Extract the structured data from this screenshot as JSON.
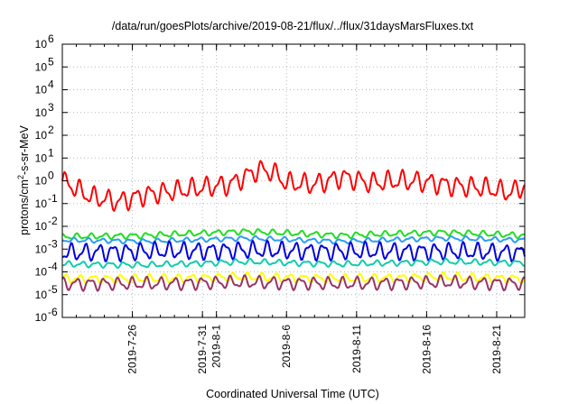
{
  "chart_data": {
    "type": "line",
    "title": "/data/run/goesPlots/archive/2019-08-21/flux/../flux/31daysMarsFluxes.txt",
    "xlabel": "Coordinated Universal Time (UTC)",
    "ylabel": {
      "pre": "protons/cm",
      "sup": "2",
      "post": "-s-sr-MeV"
    },
    "y_scale": "log",
    "ylim": [
      1e-06,
      1000000.0
    ],
    "y_ticks": [
      {
        "value": 1e-06,
        "base": "10",
        "exp": "-6"
      },
      {
        "value": 1e-05,
        "base": "10",
        "exp": "-5"
      },
      {
        "value": 0.0001,
        "base": "10",
        "exp": "-4"
      },
      {
        "value": 0.001,
        "base": "10",
        "exp": "-3"
      },
      {
        "value": 0.01,
        "base": "10",
        "exp": "-2"
      },
      {
        "value": 0.1,
        "base": "10",
        "exp": "-1"
      },
      {
        "value": 1.0,
        "base": "10",
        "exp": "0"
      },
      {
        "value": 10.0,
        "base": "10",
        "exp": "1"
      },
      {
        "value": 100.0,
        "base": "10",
        "exp": "2"
      },
      {
        "value": 1000.0,
        "base": "10",
        "exp": "3"
      },
      {
        "value": 10000.0,
        "base": "10",
        "exp": "4"
      },
      {
        "value": 100000.0,
        "base": "10",
        "exp": "5"
      },
      {
        "value": 1000000.0,
        "base": "10",
        "exp": "6"
      }
    ],
    "xlim": [
      "2019-07-21",
      "2019-08-23"
    ],
    "x_ticks": [
      "2019-7-26",
      "2019-7-31",
      "2019-8-1",
      "2019-8-6",
      "2019-8-11",
      "2019-8-16",
      "2019-8-21"
    ],
    "x_tick_dates": [
      "2019-07-26",
      "2019-07-31",
      "2019-08-01",
      "2019-08-06",
      "2019-08-11",
      "2019-08-16",
      "2019-08-21"
    ],
    "grid": true,
    "legend": "none",
    "series": [
      {
        "color": "#ff0000",
        "dates": [
          "2019-07-21",
          "2019-07-23",
          "2019-07-25",
          "2019-07-27",
          "2019-07-29",
          "2019-07-31",
          "2019-08-02",
          "2019-08-03",
          "2019-08-04",
          "2019-08-05",
          "2019-08-06",
          "2019-08-08",
          "2019-08-10",
          "2019-08-12",
          "2019-08-14",
          "2019-08-16",
          "2019-08-18",
          "2019-08-20",
          "2019-08-22",
          "2019-08-23"
        ],
        "values": [
          1.0,
          0.2,
          0.12,
          0.25,
          0.35,
          0.5,
          0.7,
          1.5,
          3.0,
          2.5,
          0.8,
          0.7,
          1.5,
          0.8,
          1.0,
          0.9,
          0.6,
          0.5,
          0.3,
          0.6
        ],
        "amp": 0.35
      },
      {
        "color": "#22dd22",
        "dates": [
          "2019-07-21",
          "2019-07-27",
          "2019-08-03",
          "2019-08-10",
          "2019-08-17",
          "2019-08-23"
        ],
        "values": [
          0.0035,
          0.004,
          0.006,
          0.004,
          0.0055,
          0.004
        ],
        "amp": 0.1
      },
      {
        "color": "#2a9df4",
        "dates": [
          "2019-07-21",
          "2019-07-27",
          "2019-08-03",
          "2019-08-10",
          "2019-08-17",
          "2019-08-23"
        ],
        "values": [
          0.0025,
          0.0022,
          0.003,
          0.0022,
          0.003,
          0.0025
        ],
        "amp": 0.08
      },
      {
        "color": "#0000dd",
        "dates": [
          "2019-07-21",
          "2019-07-27",
          "2019-08-03",
          "2019-08-10",
          "2019-08-17",
          "2019-08-23"
        ],
        "values": [
          0.0007,
          0.0008,
          0.0009,
          0.0008,
          0.0008,
          0.0007
        ],
        "amp": 0.3
      },
      {
        "color": "#11ccaa",
        "dates": [
          "2019-07-21",
          "2019-07-27",
          "2019-08-03",
          "2019-08-10",
          "2019-08-17",
          "2019-08-23"
        ],
        "values": [
          0.00022,
          0.0002,
          0.00028,
          0.00022,
          0.00028,
          0.00025
        ],
        "amp": 0.1
      },
      {
        "color": "#ffff00",
        "dates": [
          "2019-07-21",
          "2019-07-27",
          "2019-08-03",
          "2019-08-10",
          "2019-08-17",
          "2019-08-23"
        ],
        "values": [
          5e-05,
          5e-05,
          6e-05,
          5e-05,
          6e-05,
          5e-05
        ],
        "amp": 0.15
      },
      {
        "color": "#993366",
        "dates": [
          "2019-07-21",
          "2019-07-27",
          "2019-08-03",
          "2019-08-10",
          "2019-08-17",
          "2019-08-23"
        ],
        "values": [
          3e-05,
          3e-05,
          3.5e-05,
          3e-05,
          3.5e-05,
          3e-05
        ],
        "amp": 0.22
      }
    ]
  }
}
